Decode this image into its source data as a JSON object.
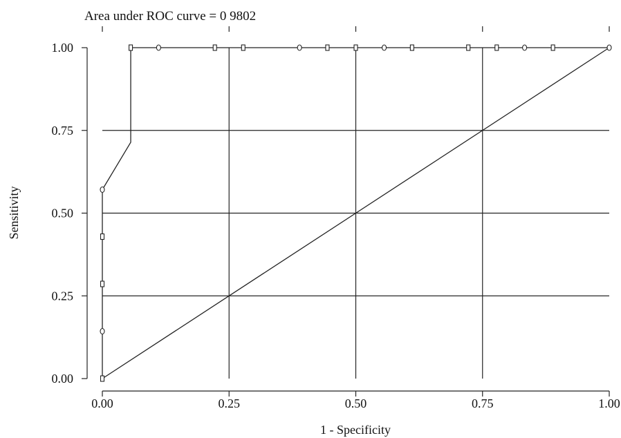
{
  "chart_data": {
    "type": "line",
    "title": "Area under ROC curve = 0 9802",
    "xlabel": "1 - Specificity",
    "ylabel": "Sensitivity",
    "xlim": [
      0,
      1
    ],
    "ylim": [
      0,
      1
    ],
    "x_ticks": [
      "0.00",
      "0.25",
      "0.50",
      "0.75",
      "1.00"
    ],
    "y_ticks": [
      "0.00",
      "0.25",
      "0.50",
      "0.75",
      "1.00"
    ],
    "grid": true,
    "series": [
      {
        "x": [
          0,
          0,
          0,
          0,
          0,
          0.056,
          0.056,
          1
        ],
        "y": [
          0,
          0.143,
          0.286,
          0.429,
          0.571,
          0.714,
          1,
          1
        ]
      },
      {
        "x": [
          0,
          1
        ],
        "y": [
          0,
          1
        ]
      }
    ],
    "markers": [
      {
        "x": 0,
        "y": 0,
        "shape": "square"
      },
      {
        "x": 0,
        "y": 0.143,
        "shape": "circle"
      },
      {
        "x": 0,
        "y": 0.286,
        "shape": "square"
      },
      {
        "x": 0,
        "y": 0.429,
        "shape": "square"
      },
      {
        "x": 0,
        "y": 0.571,
        "shape": "circle"
      },
      {
        "x": 0.056,
        "y": 1,
        "shape": "square"
      },
      {
        "x": 0.111,
        "y": 1,
        "shape": "circle"
      },
      {
        "x": 0.222,
        "y": 1,
        "shape": "square"
      },
      {
        "x": 0.278,
        "y": 1,
        "shape": "square"
      },
      {
        "x": 0.389,
        "y": 1,
        "shape": "circle"
      },
      {
        "x": 0.444,
        "y": 1,
        "shape": "square"
      },
      {
        "x": 0.5,
        "y": 1,
        "shape": "square"
      },
      {
        "x": 0.556,
        "y": 1,
        "shape": "circle"
      },
      {
        "x": 0.611,
        "y": 1,
        "shape": "square"
      },
      {
        "x": 0.722,
        "y": 1,
        "shape": "square"
      },
      {
        "x": 0.778,
        "y": 1,
        "shape": "square"
      },
      {
        "x": 0.833,
        "y": 1,
        "shape": "circle"
      },
      {
        "x": 0.889,
        "y": 1,
        "shape": "square"
      },
      {
        "x": 1,
        "y": 1,
        "shape": "circle"
      }
    ]
  }
}
